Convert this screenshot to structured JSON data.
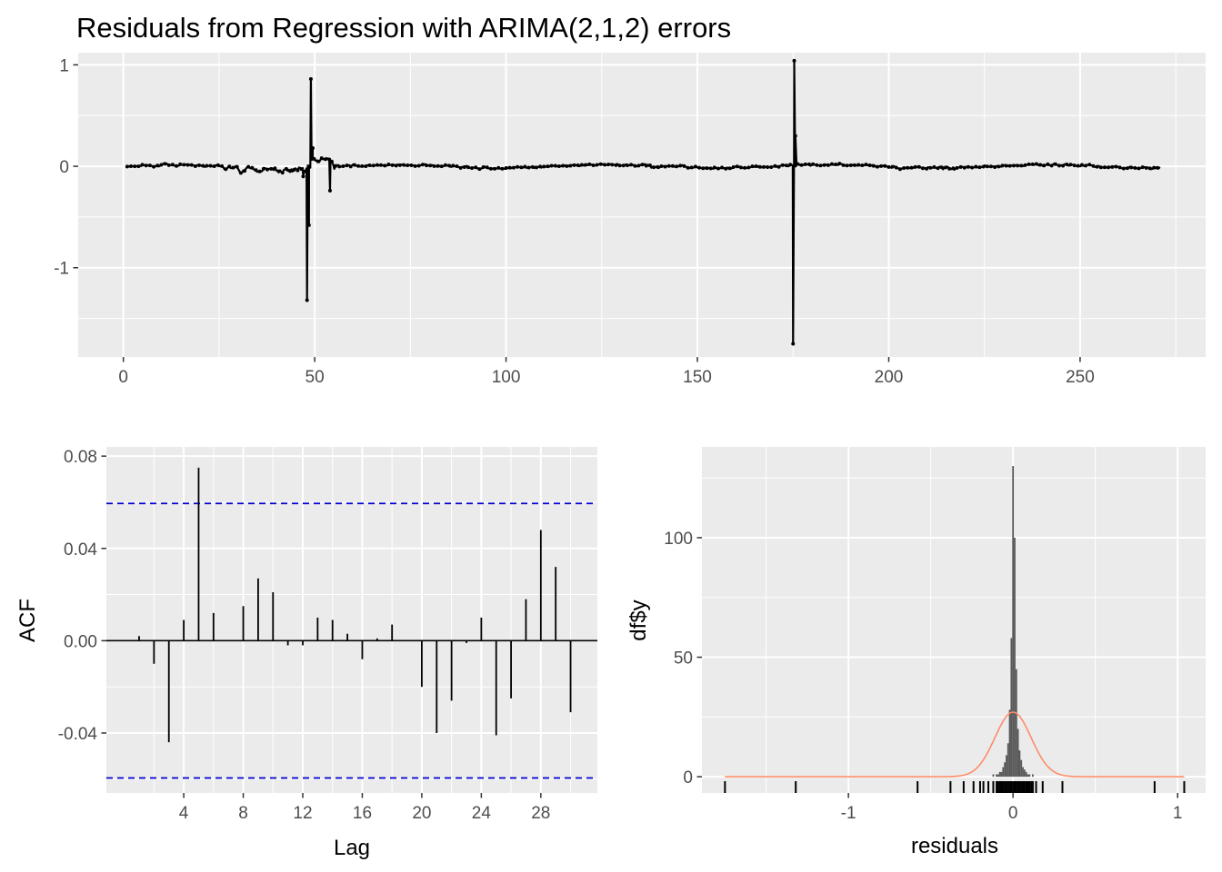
{
  "title": "Residuals from Regression with ARIMA(2,1,2) errors",
  "colors": {
    "panel_bg": "#ebebeb",
    "grid": "#ffffff",
    "line": "#000000",
    "ci": "#0000cc",
    "bars": "#595959",
    "density": "#ff8c69",
    "tick_text": "#4d4d4d"
  },
  "chart_data": [
    {
      "type": "line",
      "title": "Residuals from Regression with ARIMA(2,1,2) errors",
      "xlabel": "",
      "ylabel": "",
      "xlim": [
        -11.8,
        282.8
      ],
      "ylim": [
        -1.88,
        1.12
      ],
      "x_ticks": [
        0,
        50,
        100,
        150,
        200,
        250
      ],
      "y_ticks": [
        -1,
        0,
        1
      ],
      "x_range": [
        1,
        271
      ],
      "spikes": [
        {
          "x": 47,
          "y": -0.1
        },
        {
          "x": 48,
          "y": -1.32
        },
        {
          "x": 48.5,
          "y": -0.58
        },
        {
          "x": 49,
          "y": 0.86
        },
        {
          "x": 49.5,
          "y": 0.18
        },
        {
          "x": 54,
          "y": -0.24
        },
        {
          "x": 175,
          "y": -1.75
        },
        {
          "x": 175.3,
          "y": 1.04
        },
        {
          "x": 175.6,
          "y": 0.3
        }
      ],
      "grid": true
    },
    {
      "type": "bar",
      "xlabel": "Lag",
      "ylabel": "ACF",
      "xlim": [
        -1.2,
        31.8
      ],
      "ylim": [
        -0.066,
        0.084
      ],
      "x_ticks": [
        4,
        8,
        12,
        16,
        20,
        24,
        28
      ],
      "y_ticks": [
        -0.04,
        0.0,
        0.04,
        0.08
      ],
      "y_tick_labels": [
        "-0.04",
        "0.00",
        "0.04",
        "0.08"
      ],
      "confidence_band": [
        -0.0595,
        0.0595
      ],
      "lags": [
        1,
        2,
        3,
        4,
        5,
        6,
        7,
        8,
        9,
        10,
        11,
        12,
        13,
        14,
        15,
        16,
        17,
        18,
        19,
        20,
        21,
        22,
        23,
        24,
        25,
        26,
        27,
        28,
        29,
        30
      ],
      "values": [
        0.002,
        -0.01,
        -0.044,
        0.009,
        0.075,
        0.012,
        0.0,
        0.015,
        0.027,
        0.021,
        -0.002,
        -0.002,
        0.01,
        0.009,
        0.003,
        -0.008,
        0.001,
        0.007,
        0.0,
        -0.02,
        -0.04,
        -0.026,
        -0.001,
        0.01,
        -0.041,
        -0.025,
        0.018,
        0.048,
        0.032,
        -0.031
      ],
      "grid": true
    },
    {
      "type": "histogram",
      "xlabel": "residuals",
      "ylabel": "df$y",
      "xlim": [
        -1.89,
        1.17
      ],
      "ylim": [
        -6.8,
        138
      ],
      "x_ticks": [
        -1,
        0,
        1
      ],
      "y_ticks": [
        0,
        50,
        100
      ],
      "bin_width": 0.01,
      "histogram": [
        {
          "x": -0.12,
          "count": 1
        },
        {
          "x": -0.1,
          "count": 1
        },
        {
          "x": -0.09,
          "count": 1
        },
        {
          "x": -0.08,
          "count": 2
        },
        {
          "x": -0.07,
          "count": 2
        },
        {
          "x": -0.06,
          "count": 4
        },
        {
          "x": -0.05,
          "count": 6
        },
        {
          "x": -0.04,
          "count": 9
        },
        {
          "x": -0.03,
          "count": 14
        },
        {
          "x": -0.02,
          "count": 28
        },
        {
          "x": -0.01,
          "count": 58
        },
        {
          "x": 0.0,
          "count": 130
        },
        {
          "x": 0.01,
          "count": 100
        },
        {
          "x": 0.02,
          "count": 45
        },
        {
          "x": 0.03,
          "count": 20
        },
        {
          "x": 0.04,
          "count": 11
        },
        {
          "x": 0.05,
          "count": 7
        },
        {
          "x": 0.06,
          "count": 4
        },
        {
          "x": 0.07,
          "count": 3
        },
        {
          "x": 0.08,
          "count": 2
        },
        {
          "x": 0.09,
          "count": 1
        },
        {
          "x": 0.1,
          "count": 1
        },
        {
          "x": 0.12,
          "count": 1
        }
      ],
      "density_curve": {
        "mean": 0.0,
        "sd": 0.11,
        "peak": 27
      },
      "rug": [
        -1.75,
        -1.32,
        -0.58,
        -0.38,
        -0.3,
        -0.24,
        -0.2,
        -0.18,
        -0.15,
        -0.12,
        -0.1,
        -0.09,
        -0.08,
        -0.07,
        -0.06,
        -0.05,
        -0.04,
        -0.03,
        -0.02,
        -0.01,
        0.0,
        0.01,
        0.02,
        0.03,
        0.04,
        0.05,
        0.06,
        0.07,
        0.08,
        0.09,
        0.1,
        0.11,
        0.12,
        0.14,
        0.18,
        0.3,
        0.86,
        1.04
      ],
      "grid": true
    }
  ]
}
